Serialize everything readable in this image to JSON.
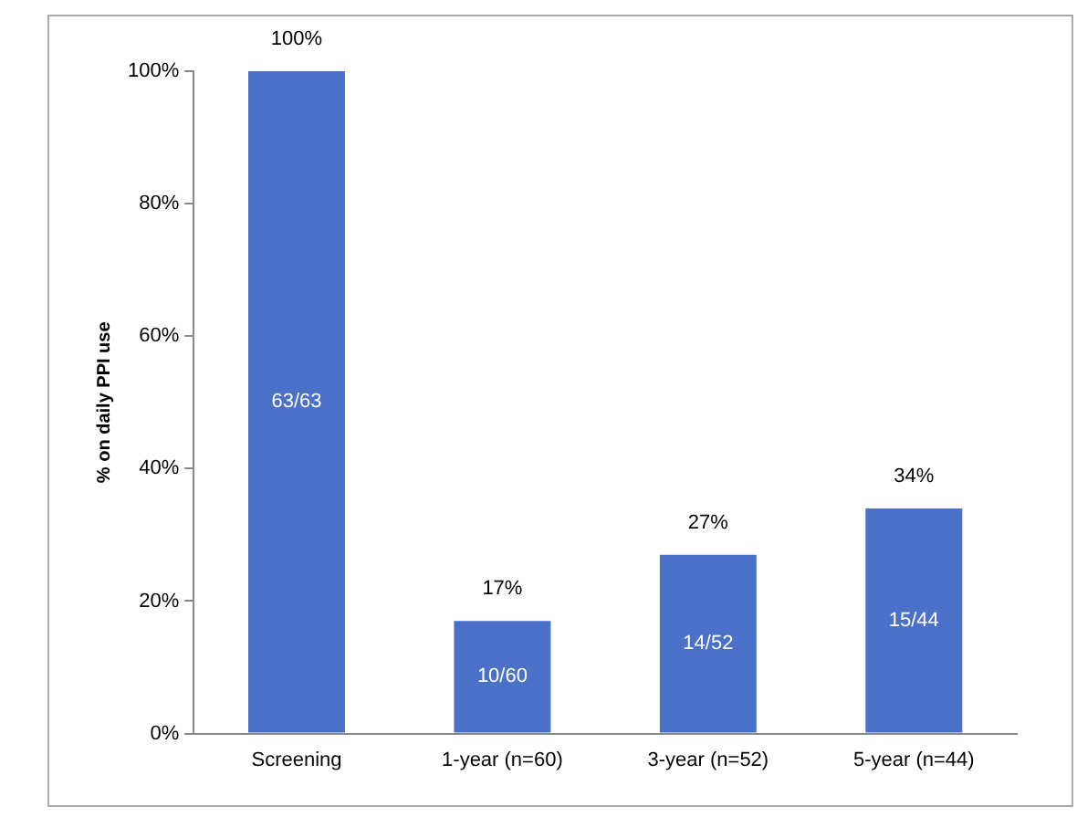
{
  "chart_data": {
    "type": "bar",
    "ylabel": "% on daily PPI use",
    "categories": [
      "Screening",
      "1-year (n=60)",
      "3-year (n=52)",
      "5-year (n=44)"
    ],
    "values": [
      100,
      17,
      27,
      34
    ],
    "color": "#4a70c8",
    "value_labels": [
      "100%",
      "17%",
      "27%",
      "34%"
    ],
    "ylim": [
      0,
      100
    ],
    "yticks": [
      {
        "value": 0,
        "label": "0%"
      },
      {
        "value": 20,
        "label": "20%"
      },
      {
        "value": 40,
        "label": "40%"
      },
      {
        "value": 60,
        "label": "60%"
      },
      {
        "value": 80,
        "label": "80%"
      },
      {
        "value": 100,
        "label": "100%"
      }
    ],
    "grid": false,
    "legend": false,
    "annotations": [
      "63/63",
      "10/60",
      "14/52",
      "15/44"
    ]
  }
}
